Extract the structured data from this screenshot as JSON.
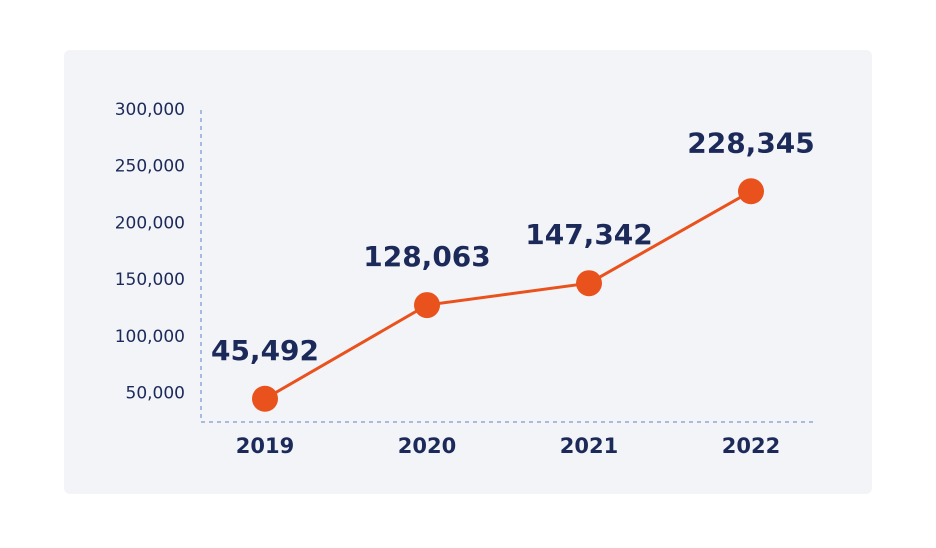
{
  "chart_data": {
    "type": "line",
    "categories": [
      "2019",
      "2020",
      "2021",
      "2022"
    ],
    "values": [
      45492,
      128063,
      147342,
      228345
    ],
    "value_labels": [
      "45,492",
      "128,063",
      "147,342",
      "228,345"
    ],
    "color": "#e9521d",
    "ylim": [
      25000,
      300000
    ],
    "yticks": [
      {
        "value": 50000,
        "label": "50,000"
      },
      {
        "value": 100000,
        "label": "100,000"
      },
      {
        "value": 150000,
        "label": "150,000"
      },
      {
        "value": 200000,
        "label": "200,000"
      },
      {
        "value": 250000,
        "label": "250,000"
      },
      {
        "value": 300000,
        "label": "300,000"
      }
    ],
    "grid": false
  }
}
